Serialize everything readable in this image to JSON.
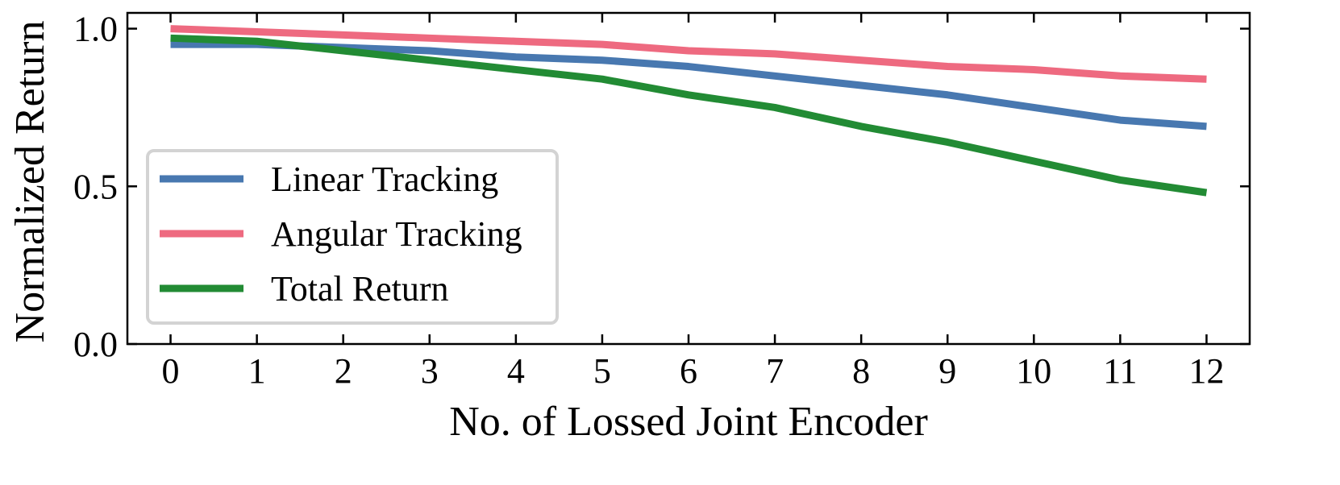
{
  "chart_data": {
    "type": "line",
    "title": "",
    "xlabel": "No. of Lossed Joint Encoder",
    "ylabel": "Normalized Return",
    "x": [
      0,
      1,
      2,
      3,
      4,
      5,
      6,
      7,
      8,
      9,
      10,
      11,
      12
    ],
    "x_ticks": [
      "0",
      "1",
      "2",
      "3",
      "4",
      "5",
      "6",
      "7",
      "8",
      "9",
      "10",
      "11",
      "12"
    ],
    "y_ticks": [
      "0.0",
      "0.5",
      "1.0"
    ],
    "y_tick_values": [
      0.0,
      0.5,
      1.0
    ],
    "xlim": [
      -0.5,
      12.5
    ],
    "ylim": [
      0.0,
      1.05
    ],
    "grid": false,
    "legend_position": "center-left",
    "series": [
      {
        "name": "Linear Tracking",
        "color": "#4878b0",
        "values": [
          0.95,
          0.95,
          0.94,
          0.93,
          0.91,
          0.9,
          0.88,
          0.85,
          0.82,
          0.79,
          0.75,
          0.71,
          0.69
        ]
      },
      {
        "name": "Angular Tracking",
        "color": "#ee6a80",
        "values": [
          1.0,
          0.99,
          0.98,
          0.97,
          0.96,
          0.95,
          0.93,
          0.92,
          0.9,
          0.88,
          0.87,
          0.85,
          0.84
        ]
      },
      {
        "name": "Total Return",
        "color": "#228b34",
        "values": [
          0.97,
          0.96,
          0.93,
          0.9,
          0.87,
          0.84,
          0.79,
          0.75,
          0.69,
          0.64,
          0.58,
          0.52,
          0.48
        ]
      }
    ]
  }
}
